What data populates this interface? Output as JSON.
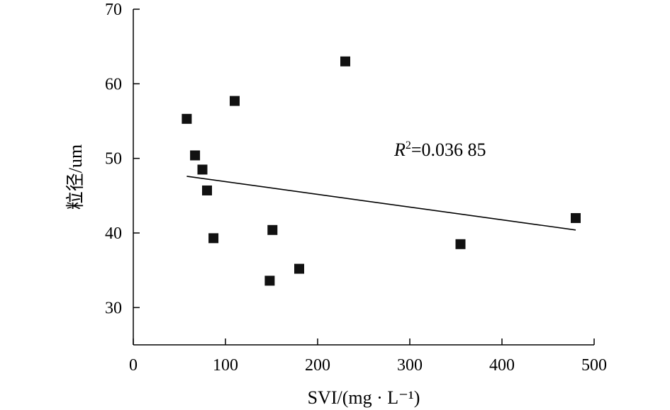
{
  "chart_data": {
    "type": "scatter",
    "xlabel": "SVI/(mg · L⁻¹)",
    "ylabel": "粒径/um",
    "xlim": [
      0,
      500
    ],
    "ylim": [
      25,
      70
    ],
    "x_ticks": [
      0,
      100,
      200,
      300,
      400,
      500
    ],
    "y_ticks": [
      30,
      40,
      50,
      60,
      70
    ],
    "grid": false,
    "legend": "none",
    "marker": "square",
    "color": "#111111",
    "points": [
      {
        "x": 58,
        "y": 55.3
      },
      {
        "x": 67,
        "y": 50.4
      },
      {
        "x": 75,
        "y": 48.5
      },
      {
        "x": 80,
        "y": 45.7
      },
      {
        "x": 87,
        "y": 39.3
      },
      {
        "x": 110,
        "y": 57.7
      },
      {
        "x": 148,
        "y": 33.6
      },
      {
        "x": 151,
        "y": 40.4
      },
      {
        "x": 180,
        "y": 35.2
      },
      {
        "x": 230,
        "y": 63.0
      },
      {
        "x": 355,
        "y": 38.5
      },
      {
        "x": 480,
        "y": 42.0
      }
    ],
    "trendline": {
      "x": [
        58,
        480
      ],
      "y": [
        47.6,
        40.4
      ]
    },
    "annotation": {
      "label": "R",
      "sup": "2",
      "value": "=0.036 85"
    }
  }
}
